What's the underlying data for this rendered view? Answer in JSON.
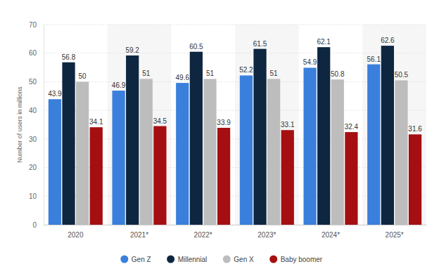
{
  "chart_data": {
    "type": "bar",
    "y_label": "Number of users in millions",
    "categories": [
      "2020",
      "2021*",
      "2022*",
      "2023*",
      "2024*",
      "2025*"
    ],
    "series": [
      {
        "name": "Gen Z",
        "color": "#3a7fdc",
        "values": [
          43.9,
          46.9,
          49.6,
          52.2,
          54.9,
          56.1
        ]
      },
      {
        "name": "Millennial",
        "color": "#0e2640",
        "values": [
          56.8,
          59.2,
          60.5,
          61.5,
          62.1,
          62.6
        ]
      },
      {
        "name": "Gen X",
        "color": "#bdbdbd",
        "values": [
          50,
          51,
          51,
          51,
          50.8,
          50.5
        ]
      },
      {
        "name": "Baby boomer",
        "color": "#a50f12",
        "values": [
          34.1,
          34.5,
          33.9,
          33.1,
          32.4,
          31.6
        ]
      }
    ],
    "ylim": [
      0,
      70
    ],
    "yticks": [
      0,
      10,
      20,
      30,
      40,
      50,
      60,
      70
    ],
    "grid": true,
    "data_labels": true,
    "legend": "bottom"
  }
}
